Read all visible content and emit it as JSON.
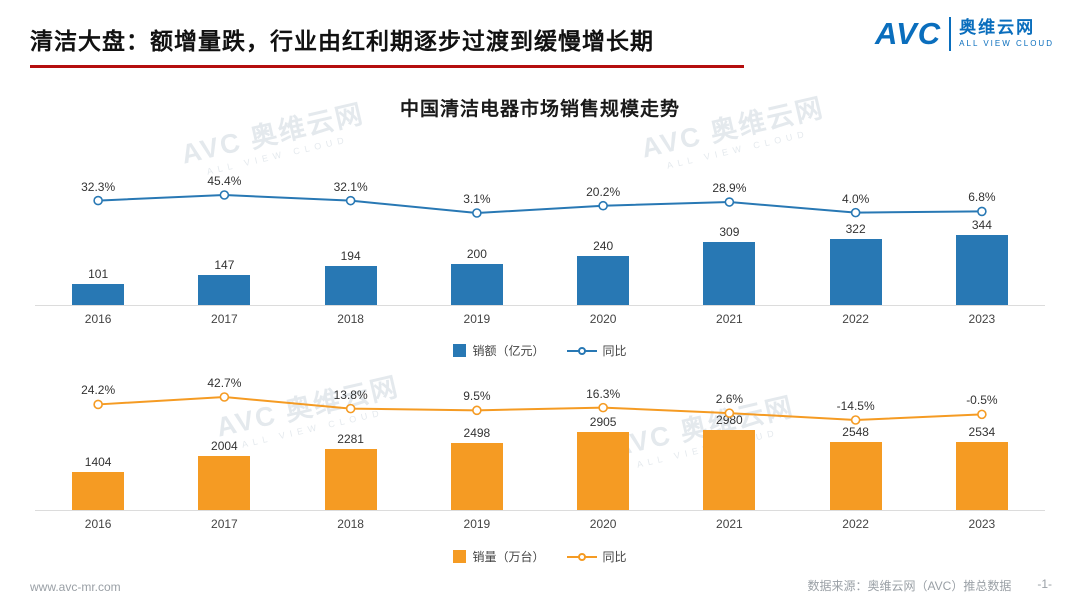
{
  "header": {
    "title": "清洁大盘：额增量跌，行业由红利期逐步过渡到缓慢增长期"
  },
  "logo": {
    "avc": "AVC",
    "name": "奥维云网",
    "tagline": "ALL VIEW CLOUD"
  },
  "chart_title": "中国清洁电器市场销售规模走势",
  "chart_data": [
    {
      "type": "bar",
      "title": "中国清洁电器市场销售规模走势（销额）",
      "categories": [
        "2016",
        "2017",
        "2018",
        "2019",
        "2020",
        "2021",
        "2022",
        "2023"
      ],
      "series": [
        {
          "name": "销额（亿元）",
          "kind": "bar",
          "values": [
            101,
            147,
            194,
            200,
            240,
            309,
            322,
            344
          ],
          "color": "#2878b4"
        },
        {
          "name": "同比",
          "kind": "line",
          "values": [
            32.3,
            45.4,
            32.1,
            3.1,
            20.2,
            28.9,
            4.0,
            6.8
          ],
          "labels": [
            "32.3%",
            "45.4%",
            "32.1%",
            "3.1%",
            "20.2%",
            "28.9%",
            "4.0%",
            "6.8%"
          ],
          "color": "#2878b4"
        }
      ],
      "legend": [
        "销额（亿元）",
        "同比"
      ],
      "legend_position": "bottom",
      "grid": false
    },
    {
      "type": "bar",
      "title": "中国清洁电器市场销售规模走势（销量）",
      "categories": [
        "2016",
        "2017",
        "2018",
        "2019",
        "2020",
        "2021",
        "2022",
        "2023"
      ],
      "series": [
        {
          "name": "销量（万台）",
          "kind": "bar",
          "values": [
            1404,
            2004,
            2281,
            2498,
            2905,
            2980,
            2548,
            2534
          ],
          "color": "#f59b23"
        },
        {
          "name": "同比",
          "kind": "line",
          "values": [
            24.2,
            42.7,
            13.8,
            9.5,
            16.3,
            2.6,
            -14.5,
            -0.5
          ],
          "labels": [
            "24.2%",
            "42.7%",
            "13.8%",
            "9.5%",
            "16.3%",
            "2.6%",
            "-14.5%",
            "-0.5%"
          ],
          "color": "#f59b23"
        }
      ],
      "legend": [
        "销量（万台）",
        "同比"
      ],
      "legend_position": "bottom",
      "grid": false
    }
  ],
  "watermark": {
    "main": "AVC 奥维云网",
    "sub": "ALL VIEW CLOUD"
  },
  "footer": {
    "site": "www.avc-mr.com",
    "source": "数据来源：奥维云网（AVC）推总数据",
    "page": "-1-"
  }
}
